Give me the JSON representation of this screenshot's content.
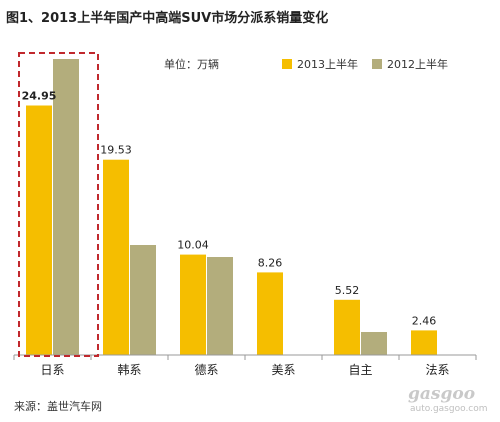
{
  "colors": {
    "series_2013": "#F5BE00",
    "series_2012": "#B3AD7C",
    "highlight_box": "#C0282D",
    "axis": "#999999"
  },
  "chart_data": {
    "type": "bar",
    "title": "图1、2013上半年国产中高端SUV市场分派系销量变化",
    "unit_label": "单位：万辆",
    "categories": [
      "日系",
      "韩系",
      "德系",
      "美系",
      "自主",
      "法系"
    ],
    "series": [
      {
        "name": "2013上半年",
        "values": [
          24.95,
          19.53,
          10.04,
          8.26,
          5.52,
          2.46
        ],
        "data_labels": [
          "24.95",
          "19.53",
          "10.04",
          "8.26",
          "5.52",
          "2.46"
        ]
      },
      {
        "name": "2012上半年",
        "values": [
          29.6,
          11.0,
          9.8,
          0,
          2.3,
          0
        ]
      }
    ],
    "ylim": [
      0,
      30
    ],
    "grid": false,
    "legend": "top-right",
    "highlighted_category": "日系"
  },
  "footer": {
    "source": "来源：盖世汽车网",
    "watermark_main": "gasgoo",
    "watermark_url": "auto.gasgoo.com"
  }
}
